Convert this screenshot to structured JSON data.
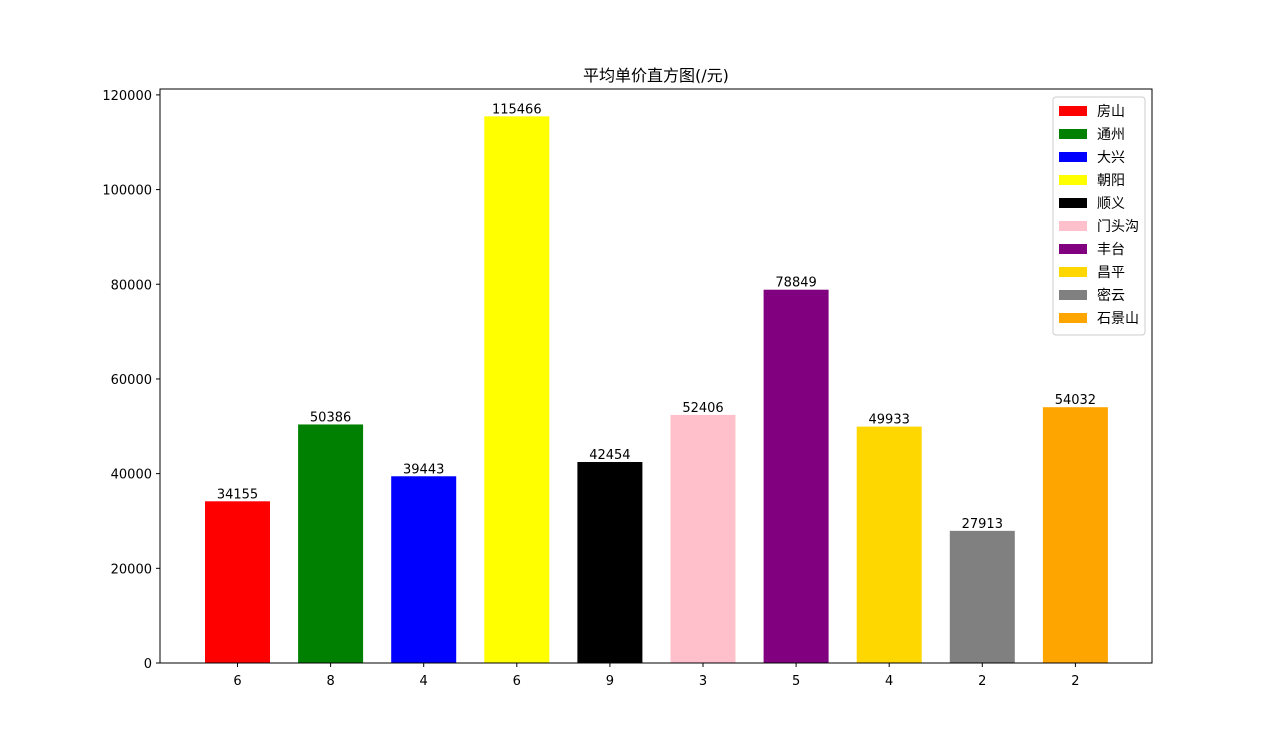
{
  "chart_data": {
    "type": "bar",
    "title": "平均单价直方图(/元)",
    "xlabel": "",
    "ylabel": "",
    "ylim": [
      0,
      121245
    ],
    "yticks": [
      0,
      20000,
      40000,
      60000,
      80000,
      100000,
      120000
    ],
    "ytick_labels": [
      "0",
      "20000",
      "40000",
      "60000",
      "80000",
      "100000",
      "120000"
    ],
    "categories": [
      "6",
      "8",
      "4",
      "6",
      "9",
      "3",
      "5",
      "4",
      "2",
      "2"
    ],
    "values": [
      34155,
      50386,
      39443,
      115466,
      42454,
      52406,
      78849,
      49933,
      27913,
      54032
    ],
    "value_labels": [
      "34155",
      "50386",
      "39443",
      "115466",
      "42454",
      "52406",
      "78849",
      "49933",
      "27913",
      "54032"
    ],
    "series_names": [
      "房山",
      "通州",
      "大兴",
      "朝阳",
      "顺义",
      "门头沟",
      "丰台",
      "昌平",
      "密云",
      "石景山"
    ],
    "colors": [
      "#ff0000",
      "#008000",
      "#0000ff",
      "#ffff00",
      "#000000",
      "#ffc0cb",
      "#800080",
      "#ffd700",
      "#808080",
      "#ffa500"
    ],
    "legend_position": "upper right",
    "grid": false
  }
}
